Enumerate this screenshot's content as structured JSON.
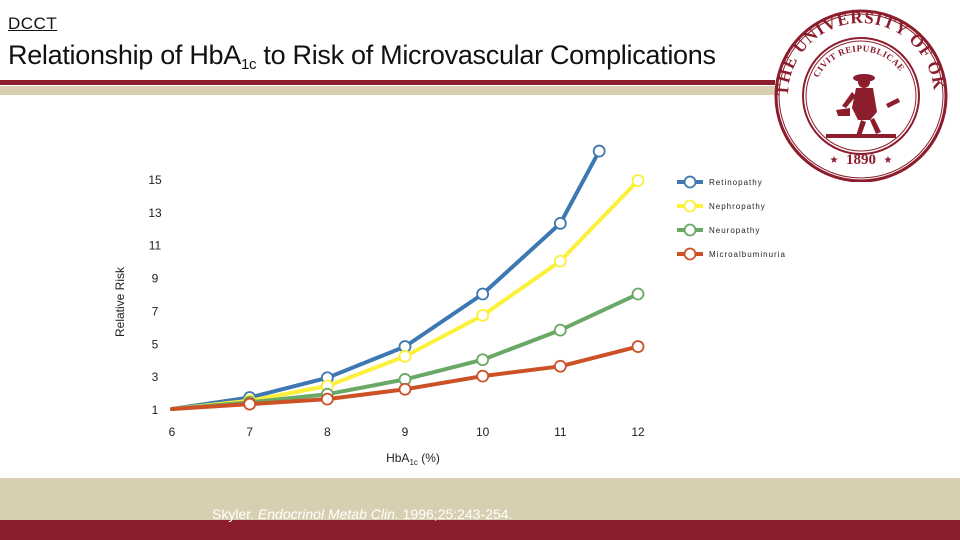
{
  "header": {
    "tag": "DCCT",
    "title_pre": "Relationship of Hb",
    "title_a": "A",
    "title_sub": "1c",
    "title_post": " to Risk of Microvascular Complications"
  },
  "seal": {
    "icon": "university-seal-icon",
    "text_top": "THE UNIVERSITY OF OKLAHOMA",
    "text_inner": "CIVIT REIPUBLICAE",
    "year": "1890",
    "color": "#8c1d2c"
  },
  "citation": {
    "author": "Skyler.",
    "journal": "Endocrinol Metab Clin.",
    "details": "1996;25:243-254."
  },
  "colors": {
    "brand_dark": "#8c1d2c",
    "brand_light": "#d8ceb2"
  },
  "chart_data": {
    "type": "line",
    "ylabel": "Relative Risk",
    "xlabel_main": "HbA",
    "xlabel_sub": "1c",
    "xlabel_unit": " (%)",
    "xlim": [
      6,
      12
    ],
    "ylim": [
      1,
      15
    ],
    "x_ticks": [
      "6",
      "7",
      "8",
      "9",
      "10",
      "11",
      "12"
    ],
    "y_ticks": [
      "1",
      "3",
      "5",
      "7",
      "9",
      "11",
      "13",
      "15"
    ],
    "legend_position": "right",
    "series": [
      {
        "name": "Retinopathy",
        "color": "#3e78b3",
        "x": [
          6,
          7,
          8,
          9,
          10,
          11,
          11.5
        ],
        "y": [
          1,
          1.7,
          2.9,
          4.8,
          8.0,
          12.3,
          16.7
        ]
      },
      {
        "name": "Nephropathy",
        "color": "#fbf03a",
        "x": [
          6,
          7,
          8,
          9,
          10,
          11,
          12
        ],
        "y": [
          1,
          1.5,
          2.4,
          4.2,
          6.7,
          10.0,
          14.9
        ]
      },
      {
        "name": "Neuropathy",
        "color": "#6aa865",
        "x": [
          6,
          7,
          8,
          9,
          10,
          11,
          12
        ],
        "y": [
          1,
          1.4,
          1.9,
          2.8,
          4.0,
          5.8,
          8.0
        ]
      },
      {
        "name": "Microalbuminuria",
        "color": "#cc5127",
        "x": [
          6,
          7,
          8,
          9,
          10,
          11,
          12
        ],
        "y": [
          1,
          1.3,
          1.6,
          2.2,
          3.0,
          3.6,
          4.8
        ]
      }
    ]
  }
}
